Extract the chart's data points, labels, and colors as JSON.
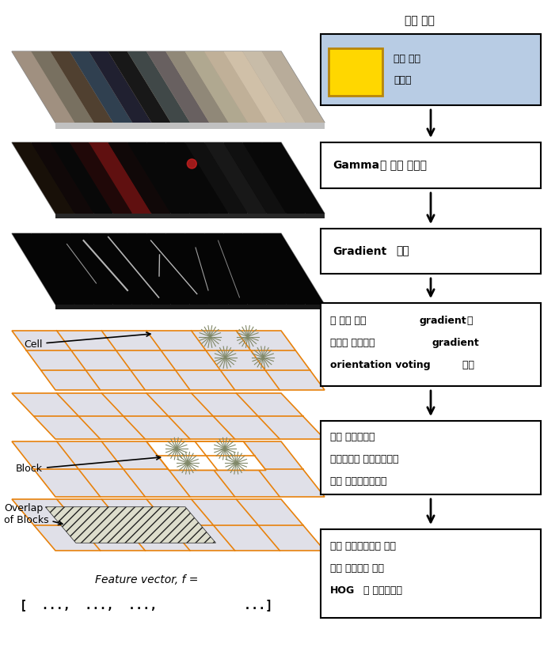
{
  "fig_width": 7.06,
  "fig_height": 8.33,
  "bg_color": "#ffffff",
  "orange": "#E8820C",
  "gray_cell": "#e0e0e8",
  "gray_spoke": "#808868",
  "blue_box_bg": "#b8cce4",
  "yellow_fill": "#FFD700",
  "yellow_border": "#B8860B",
  "title_above_input": "입력 영상",
  "input_box_text1": "휴머 검출",
  "input_box_text2": "윈도우",
  "gamma_bold": "Gamma",
  "gamma_rest": "와 색상 정규화",
  "gradient_bold": "Gradient",
  "gradient_rest": "계산",
  "voting_line1_pre": "각 셀에 대해 ",
  "voting_line1_bold": "gradient",
  "voting_line1_post": "의",
  "voting_line2_pre": "크기를 기반으로 ",
  "voting_line2_bold": "gradient",
  "voting_line3_bold": "orientation voting",
  "voting_line3_post": " 수행",
  "normalize_line1": "여러 셀로구성된",
  "normalize_line2": "블록들간의 격치는부분에",
  "normalize_line3": "대해 명암값을정규화",
  "combine_line1": "검출 윈도우내부에 있는",
  "combine_line2": "모든 블록들에 대한",
  "combine_line3_bold": "HOG",
  "combine_line3_post": "를 벡터로결합",
  "cell_label": "Cell",
  "block_label": "Block",
  "overlap_label": "Overlap\nof Blocks",
  "feature_text1": "Feature vector, f =",
  "feature_text2": "[  ...,  ...,  ...,            ...]"
}
